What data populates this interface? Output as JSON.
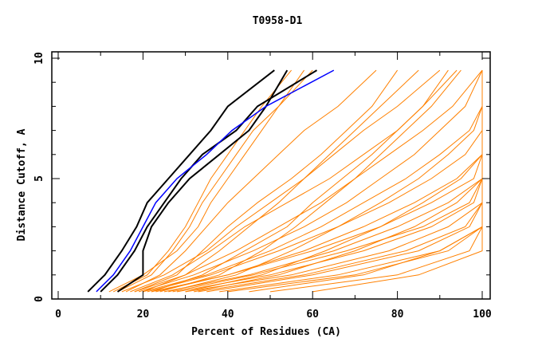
{
  "chart_data": {
    "type": "line",
    "title": "T0958-D1",
    "xlabel": "Percent of Residues (CA)",
    "ylabel": "Distance Cutoff, A",
    "xlim": [
      0,
      100
    ],
    "ylim": [
      0,
      10
    ],
    "xticks": [
      "0",
      "20",
      "40",
      "60",
      "80",
      "100"
    ],
    "xtick_values": [
      0,
      20,
      40,
      60,
      80,
      100
    ],
    "yticks": [
      "0",
      "5",
      "10"
    ],
    "ytick_values": [
      0,
      5,
      10
    ],
    "grid": false,
    "y_levels": [
      0.3,
      1,
      2,
      3,
      4,
      5,
      6,
      7,
      8,
      9.5
    ],
    "colors": {
      "models": "#ff8000",
      "highlight": "#0000ff",
      "reference": "#000000"
    },
    "series_models": [
      [
        12,
        20,
        28,
        33,
        36,
        40,
        44,
        48,
        52,
        60
      ],
      [
        15,
        25,
        35,
        42,
        50,
        58,
        65,
        72,
        80,
        90
      ],
      [
        18,
        30,
        42,
        52,
        62,
        70,
        78,
        86,
        93,
        100
      ],
      [
        20,
        35,
        50,
        62,
        72,
        82,
        90,
        97,
        100,
        100
      ],
      [
        22,
        40,
        58,
        72,
        84,
        94,
        100,
        100,
        100,
        100
      ],
      [
        25,
        45,
        65,
        80,
        92,
        100,
        100,
        100,
        100,
        100
      ],
      [
        28,
        50,
        72,
        88,
        98,
        100,
        100,
        100,
        100,
        100
      ],
      [
        30,
        55,
        78,
        92,
        100,
        100,
        100,
        100,
        100,
        100
      ],
      [
        35,
        60,
        85,
        97,
        100,
        100,
        100,
        100,
        100,
        100
      ],
      [
        40,
        70,
        92,
        100,
        100,
        100,
        100,
        100,
        100,
        100
      ],
      [
        50,
        80,
        97,
        100,
        100,
        100,
        100,
        100,
        100,
        100
      ],
      [
        20,
        30,
        38,
        45,
        52,
        58,
        64,
        70,
        76,
        85
      ],
      [
        16,
        24,
        30,
        35,
        40,
        46,
        52,
        58,
        66,
        75
      ],
      [
        14,
        22,
        27,
        31,
        34,
        38,
        42,
        46,
        52,
        58
      ],
      [
        24,
        38,
        48,
        56,
        63,
        70,
        76,
        82,
        88,
        95
      ],
      [
        26,
        42,
        55,
        66,
        76,
        85,
        92,
        98,
        100,
        100
      ],
      [
        30,
        48,
        63,
        76,
        86,
        95,
        100,
        100,
        100,
        100
      ],
      [
        32,
        52,
        70,
        84,
        94,
        100,
        100,
        100,
        100,
        100
      ],
      [
        45,
        72,
        90,
        100,
        100,
        100,
        100,
        100,
        100,
        100
      ],
      [
        60,
        85,
        100,
        100,
        100,
        100,
        100,
        100,
        100,
        100
      ],
      [
        17,
        27,
        36,
        44,
        54,
        64,
        72,
        80,
        86,
        94
      ],
      [
        19,
        32,
        46,
        58,
        68,
        76,
        84,
        90,
        96,
        100
      ],
      [
        21,
        36,
        52,
        66,
        78,
        88,
        96,
        100,
        100,
        100
      ],
      [
        23,
        40,
        60,
        76,
        88,
        98,
        100,
        100,
        100,
        100
      ],
      [
        27,
        46,
        68,
        86,
        97,
        100,
        100,
        100,
        100,
        100
      ],
      [
        33,
        58,
        82,
        96,
        100,
        100,
        100,
        100,
        100,
        100
      ],
      [
        38,
        66,
        90,
        100,
        100,
        100,
        100,
        100,
        100,
        100
      ],
      [
        13,
        21,
        26,
        30,
        33,
        36,
        40,
        44,
        48,
        55
      ],
      [
        18,
        28,
        34,
        40,
        47,
        55,
        62,
        68,
        74,
        80
      ],
      [
        22,
        34,
        44,
        54,
        60,
        67,
        74,
        80,
        86,
        92
      ]
    ],
    "series_highlight": [
      {
        "name": "blue",
        "x": [
          9,
          13,
          17,
          20,
          23,
          28,
          35,
          41,
          49,
          65
        ]
      }
    ],
    "series_reference": [
      {
        "name": "black-1",
        "x": [
          7,
          11,
          15,
          18.5,
          21,
          26,
          31,
          36,
          40,
          51
        ]
      },
      {
        "name": "black-2",
        "x": [
          10,
          14,
          18,
          21,
          25,
          29,
          34,
          42,
          47,
          61
        ]
      },
      {
        "name": "black-3",
        "x": [
          14,
          20,
          20,
          22,
          26,
          31,
          38,
          45,
          49,
          54
        ]
      }
    ]
  }
}
